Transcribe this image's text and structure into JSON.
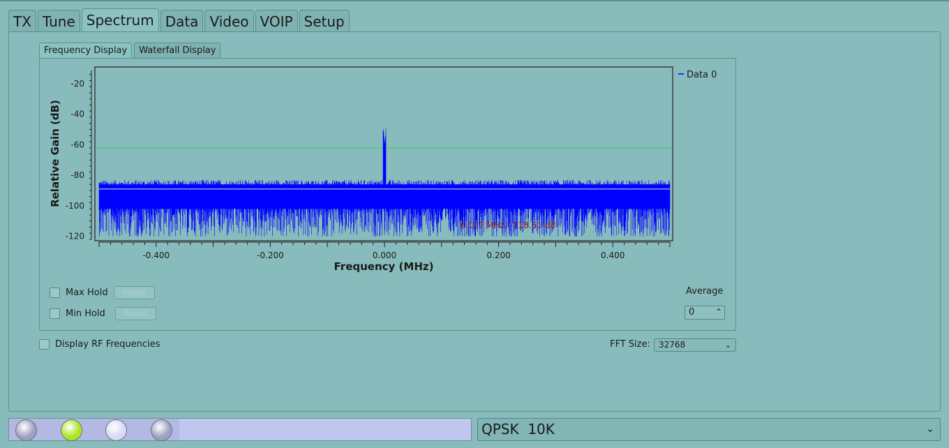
{
  "main_tabs": [
    "TX",
    "Tune",
    "Spectrum",
    "Data",
    "Video",
    "VOIP",
    "Setup"
  ],
  "sub_tabs": [
    "Frequency Display",
    "Waterfall Display"
  ],
  "plot": {
    "ylabel": "Relative Gain (dB)",
    "xlabel": "Frequency (MHz)",
    "legend": "Data 0",
    "cursor_readout": "0.127 MHz, -118.61 dB",
    "y_ticks": [
      "-20",
      "-40",
      "-60",
      "-80",
      "-100",
      "-120"
    ],
    "x_ticks": [
      "-0.400",
      "-0.200",
      "0.000",
      "0.200",
      "0.400"
    ]
  },
  "chart_data": {
    "type": "line",
    "xlabel": "Frequency (MHz)",
    "ylabel": "Relative Gain (dB)",
    "xlim": [
      -0.5,
      0.5
    ],
    "ylim": [
      -122,
      -10
    ],
    "series": [
      {
        "name": "Data 0",
        "color": "#0000ff",
        "noise_floor_db": -90,
        "noise_range_db": [
          -120,
          -82
        ],
        "peak_freq_mhz": 0.0,
        "peak_db": -62
      }
    ],
    "markers": {
      "max_hold_line_db": -62,
      "avg_line_db": -89
    },
    "legend_placement": "right"
  },
  "controls": {
    "max_hold": "Max Hold",
    "min_hold": "Min Hold",
    "reset": "Reset",
    "average_label": "Average",
    "average_value": "0",
    "rf_freq": "Display RF Frequencies",
    "fft_label": "FFT Size:",
    "fft_value": "32768"
  },
  "status": {
    "mode": "QPSK  10K",
    "leds": [
      {
        "name": "led-1",
        "color": "#9ea2c2"
      },
      {
        "name": "led-2",
        "color": "#a8e81e"
      },
      {
        "name": "led-3",
        "color": "#d6daf6"
      },
      {
        "name": "led-4",
        "color": "#9ea2c2"
      }
    ]
  }
}
